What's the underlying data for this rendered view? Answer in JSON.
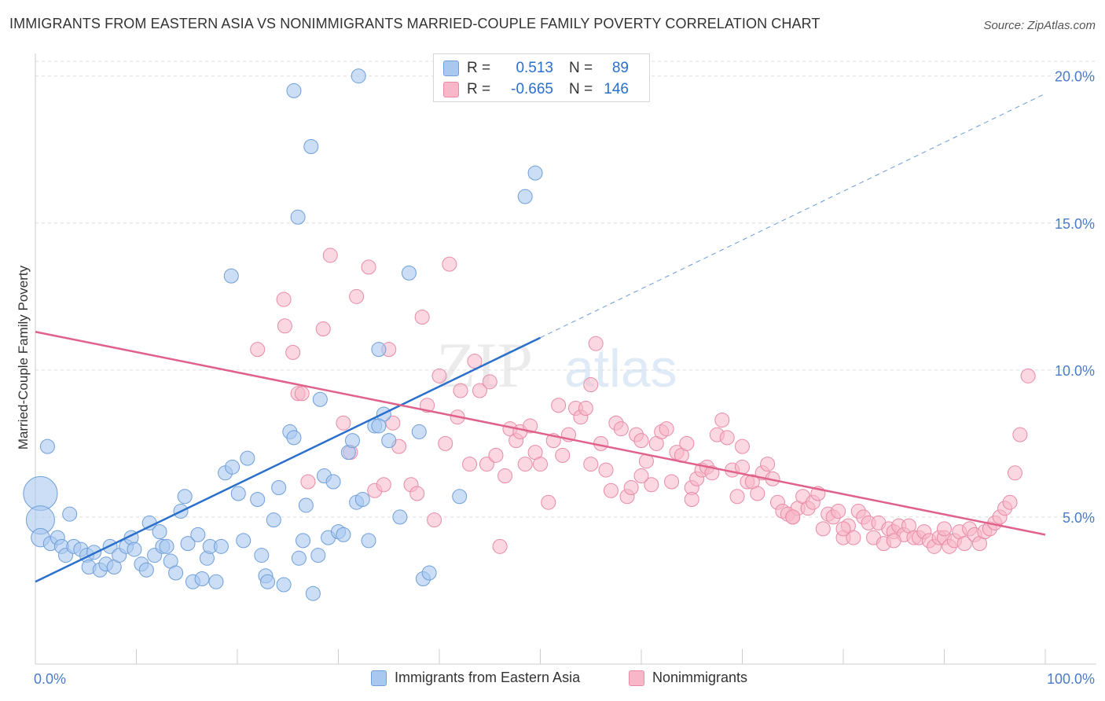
{
  "header": {
    "title": "IMMIGRANTS FROM EASTERN ASIA VS NONIMMIGRANTS MARRIED-COUPLE FAMILY POVERTY CORRELATION CHART",
    "source": "Source: ZipAtlas.com"
  },
  "watermark": {
    "zip": "ZIP",
    "atlas": "atlas"
  },
  "colors": {
    "blue_fill": "#a9c8f0",
    "blue_stroke": "#6f9fd8",
    "blue_line": "#2a6fcc",
    "pink_fill": "#f7b7c9",
    "pink_stroke": "#e88aa6",
    "pink_line": "#e0628b",
    "tick_label": "#4a7cc9",
    "grid": "#dddddd"
  },
  "legend": {
    "rows": [
      {
        "r_label": "R =",
        "r_value": "0.513",
        "n_label": "N =",
        "n_value": "89",
        "series": "blue"
      },
      {
        "r_label": "R =",
        "r_value": "-0.665",
        "n_label": "N =",
        "n_value": "146",
        "series": "pink"
      }
    ]
  },
  "bottom_legend": [
    {
      "label": "Immigrants from Eastern Asia",
      "series": "blue"
    },
    {
      "label": "Nonimmigrants",
      "series": "pink"
    }
  ],
  "chart_data": {
    "type": "scatter",
    "title": "IMMIGRANTS FROM EASTERN ASIA VS NONIMMIGRANTS MARRIED-COUPLE FAMILY POVERTY CORRELATION CHART",
    "xlabel": "",
    "ylabel": "Married-Couple Family Poverty",
    "xlim": [
      0,
      100
    ],
    "ylim": [
      0,
      20.5
    ],
    "x_tick_labels": [
      "0.0%",
      "100.0%"
    ],
    "y_ticks": [
      5,
      10,
      15,
      20
    ],
    "y_tick_labels": [
      "5.0%",
      "10.0%",
      "15.0%",
      "20.0%"
    ],
    "grid": true,
    "legend_position": "top-center",
    "series": [
      {
        "name": "Immigrants from Eastern Asia",
        "color": "#a9c8f0",
        "r": 0.513,
        "n": 89,
        "trend": {
          "x": [
            0,
            50
          ],
          "y": [
            2.8,
            11.1
          ],
          "extended_x": [
            50,
            100
          ],
          "extended_y": [
            11.1,
            19.4
          ]
        },
        "points": [
          [
            0.5,
            5.8,
            2.4
          ],
          [
            0.5,
            4.9,
            2.0
          ],
          [
            0.5,
            4.3,
            1.3
          ],
          [
            1.5,
            4.1,
            1
          ],
          [
            2.2,
            4.3,
            1
          ],
          [
            2.6,
            4.0,
            1
          ],
          [
            3.4,
            5.1,
            1
          ],
          [
            3.0,
            3.7,
            1
          ],
          [
            3.8,
            4.0,
            1
          ],
          [
            4.5,
            3.9,
            1
          ],
          [
            5.1,
            3.7,
            1
          ],
          [
            5.8,
            3.8,
            1
          ],
          [
            5.3,
            3.3,
            1
          ],
          [
            6.4,
            3.2,
            1
          ],
          [
            7.0,
            3.4,
            1
          ],
          [
            7.4,
            4.0,
            1
          ],
          [
            7.8,
            3.3,
            1
          ],
          [
            8.3,
            3.7,
            1
          ],
          [
            9.0,
            4.0,
            1
          ],
          [
            9.5,
            4.3,
            1
          ],
          [
            9.8,
            3.9,
            1
          ],
          [
            10.5,
            3.4,
            1
          ],
          [
            11.0,
            3.2,
            1
          ],
          [
            11.3,
            4.8,
            1
          ],
          [
            11.8,
            3.7,
            1
          ],
          [
            12.3,
            4.5,
            1
          ],
          [
            12.6,
            4.0,
            1
          ],
          [
            13.0,
            4.0,
            1
          ],
          [
            13.4,
            3.5,
            1
          ],
          [
            13.9,
            3.1,
            1
          ],
          [
            14.4,
            5.2,
            1
          ],
          [
            14.8,
            5.7,
            1
          ],
          [
            15.1,
            4.1,
            1
          ],
          [
            15.6,
            2.8,
            1
          ],
          [
            16.1,
            4.4,
            1
          ],
          [
            16.5,
            2.9,
            1
          ],
          [
            17.0,
            3.6,
            1
          ],
          [
            17.3,
            4.0,
            1
          ],
          [
            17.9,
            2.8,
            1
          ],
          [
            18.4,
            4.0,
            1
          ],
          [
            18.8,
            6.5,
            1
          ],
          [
            19.5,
            6.7,
            1
          ],
          [
            20.1,
            5.8,
            1
          ],
          [
            20.6,
            4.2,
            1
          ],
          [
            21.0,
            7.0,
            1
          ],
          [
            22.0,
            5.6,
            1
          ],
          [
            22.4,
            3.7,
            1
          ],
          [
            22.8,
            3.0,
            1
          ],
          [
            23.0,
            2.8,
            1
          ],
          [
            23.6,
            4.9,
            1
          ],
          [
            24.1,
            6.0,
            1
          ],
          [
            24.6,
            2.7,
            1
          ],
          [
            25.2,
            7.9,
            1
          ],
          [
            25.6,
            7.7,
            1
          ],
          [
            26.1,
            3.6,
            1
          ],
          [
            26.5,
            4.2,
            1
          ],
          [
            26.8,
            5.4,
            1
          ],
          [
            27.5,
            2.4,
            1
          ],
          [
            28.0,
            3.7,
            1
          ],
          [
            28.6,
            6.4,
            1
          ],
          [
            29.0,
            4.3,
            1
          ],
          [
            29.5,
            6.2,
            1
          ],
          [
            30.0,
            4.5,
            1
          ],
          [
            30.5,
            4.4,
            1
          ],
          [
            31.0,
            7.2,
            1
          ],
          [
            31.4,
            7.6,
            1
          ],
          [
            31.8,
            5.5,
            1
          ],
          [
            32.4,
            5.6,
            1
          ],
          [
            33.0,
            4.2,
            1
          ],
          [
            33.6,
            8.1,
            1
          ],
          [
            34.0,
            10.7,
            1
          ],
          [
            34.5,
            8.5,
            1
          ],
          [
            35.0,
            7.6,
            1
          ],
          [
            36.1,
            5.0,
            1
          ],
          [
            37.0,
            13.3,
            1
          ],
          [
            38.0,
            7.9,
            1
          ],
          [
            38.4,
            2.9,
            1
          ],
          [
            39.0,
            3.1,
            1
          ],
          [
            42.0,
            5.7,
            1
          ],
          [
            48.5,
            15.9,
            1
          ],
          [
            49.5,
            16.7,
            1
          ],
          [
            32.0,
            20.0,
            1
          ],
          [
            25.6,
            19.5,
            1
          ],
          [
            27.3,
            17.6,
            1
          ],
          [
            26.0,
            15.2,
            1
          ],
          [
            19.4,
            13.2,
            1
          ],
          [
            28.2,
            9.0,
            1
          ],
          [
            34.0,
            8.1,
            1
          ],
          [
            1.2,
            7.4,
            1
          ]
        ]
      },
      {
        "name": "Nonimmigrants",
        "color": "#f7b7c9",
        "r": -0.665,
        "n": 146,
        "trend": {
          "x": [
            0,
            100
          ],
          "y": [
            11.3,
            4.4
          ]
        },
        "points": [
          [
            22.0,
            10.7,
            1
          ],
          [
            24.7,
            11.5,
            1
          ],
          [
            24.6,
            12.4,
            1
          ],
          [
            25.5,
            10.6,
            1
          ],
          [
            26.0,
            9.2,
            1
          ],
          [
            26.4,
            9.2,
            1
          ],
          [
            27.0,
            6.2,
            1
          ],
          [
            28.5,
            11.4,
            1
          ],
          [
            29.2,
            13.9,
            1
          ],
          [
            30.5,
            8.2,
            1
          ],
          [
            31.2,
            7.2,
            1
          ],
          [
            31.8,
            12.5,
            1
          ],
          [
            33.0,
            13.5,
            1
          ],
          [
            33.6,
            5.9,
            1
          ],
          [
            34.5,
            6.1,
            1
          ],
          [
            35.0,
            10.7,
            1
          ],
          [
            35.4,
            8.2,
            1
          ],
          [
            36.0,
            7.4,
            1
          ],
          [
            37.2,
            6.1,
            1
          ],
          [
            37.8,
            5.8,
            1
          ],
          [
            38.3,
            11.8,
            1
          ],
          [
            38.8,
            8.8,
            1
          ],
          [
            39.5,
            4.9,
            1
          ],
          [
            40.0,
            9.8,
            1
          ],
          [
            40.6,
            7.5,
            1
          ],
          [
            41.0,
            13.6,
            1
          ],
          [
            41.8,
            8.4,
            1
          ],
          [
            42.1,
            9.3,
            1
          ],
          [
            43.0,
            6.8,
            1
          ],
          [
            43.5,
            10.3,
            1
          ],
          [
            44.0,
            9.3,
            1
          ],
          [
            44.7,
            6.8,
            1
          ],
          [
            45.0,
            9.6,
            1
          ],
          [
            45.6,
            7.1,
            1
          ],
          [
            46.0,
            4.0,
            1
          ],
          [
            46.5,
            6.4,
            1
          ],
          [
            47.0,
            8.0,
            1
          ],
          [
            47.6,
            7.6,
            1
          ],
          [
            48.0,
            7.9,
            1
          ],
          [
            48.5,
            6.8,
            1
          ],
          [
            49.0,
            8.1,
            1
          ],
          [
            49.5,
            7.2,
            1
          ],
          [
            50.0,
            6.8,
            1
          ],
          [
            50.8,
            5.5,
            1
          ],
          [
            51.3,
            7.6,
            1
          ],
          [
            51.8,
            8.8,
            1
          ],
          [
            52.2,
            7.1,
            1
          ],
          [
            52.8,
            7.8,
            1
          ],
          [
            53.5,
            8.7,
            1
          ],
          [
            54.0,
            8.4,
            1
          ],
          [
            54.5,
            8.7,
            1
          ],
          [
            55.0,
            9.5,
            1
          ],
          [
            55.5,
            10.9,
            1
          ],
          [
            56.0,
            7.5,
            1
          ],
          [
            56.5,
            6.6,
            1
          ],
          [
            57.0,
            5.9,
            1
          ],
          [
            57.5,
            8.2,
            1
          ],
          [
            58.0,
            8.0,
            1
          ],
          [
            58.6,
            5.7,
            1
          ],
          [
            59.0,
            6.0,
            1
          ],
          [
            59.5,
            7.8,
            1
          ],
          [
            60.0,
            7.6,
            1
          ],
          [
            60.5,
            6.9,
            1
          ],
          [
            61.0,
            6.1,
            1
          ],
          [
            61.5,
            7.5,
            1
          ],
          [
            62.0,
            7.9,
            1
          ],
          [
            62.5,
            8.0,
            1
          ],
          [
            63.0,
            6.2,
            1
          ],
          [
            63.5,
            7.2,
            1
          ],
          [
            64.0,
            7.1,
            1
          ],
          [
            64.5,
            7.5,
            1
          ],
          [
            65.0,
            6.0,
            1
          ],
          [
            65.5,
            6.3,
            1
          ],
          [
            66.0,
            6.6,
            1
          ],
          [
            66.5,
            6.7,
            1
          ],
          [
            67.0,
            6.5,
            1
          ],
          [
            67.5,
            7.8,
            1
          ],
          [
            68.0,
            8.3,
            1
          ],
          [
            68.5,
            7.7,
            1
          ],
          [
            69.0,
            6.6,
            1
          ],
          [
            69.5,
            5.7,
            1
          ],
          [
            70.0,
            7.4,
            1
          ],
          [
            70.5,
            6.2,
            1
          ],
          [
            71.0,
            6.2,
            1
          ],
          [
            71.5,
            5.8,
            1
          ],
          [
            72.0,
            6.5,
            1
          ],
          [
            72.5,
            6.8,
            1
          ],
          [
            73.0,
            6.3,
            1
          ],
          [
            73.5,
            5.5,
            1
          ],
          [
            74.0,
            5.2,
            1
          ],
          [
            74.5,
            5.1,
            1
          ],
          [
            75.0,
            5.0,
            1
          ],
          [
            75.5,
            5.3,
            1
          ],
          [
            76.0,
            5.7,
            1
          ],
          [
            76.5,
            5.3,
            1
          ],
          [
            77.0,
            5.5,
            1
          ],
          [
            77.5,
            5.8,
            1
          ],
          [
            78.0,
            4.6,
            1
          ],
          [
            78.5,
            5.1,
            1
          ],
          [
            79.0,
            5.0,
            1
          ],
          [
            79.5,
            5.2,
            1
          ],
          [
            80.0,
            4.3,
            1
          ],
          [
            80.5,
            4.7,
            1
          ],
          [
            81.0,
            4.3,
            1
          ],
          [
            81.5,
            5.2,
            1
          ],
          [
            82.0,
            5.0,
            1
          ],
          [
            82.5,
            4.8,
            1
          ],
          [
            83.0,
            4.3,
            1
          ],
          [
            83.5,
            4.8,
            1
          ],
          [
            84.0,
            4.1,
            1
          ],
          [
            84.5,
            4.6,
            1
          ],
          [
            85.0,
            4.5,
            1
          ],
          [
            85.5,
            4.7,
            1
          ],
          [
            86.0,
            4.4,
            1
          ],
          [
            86.5,
            4.7,
            1
          ],
          [
            87.0,
            4.3,
            1
          ],
          [
            87.5,
            4.3,
            1
          ],
          [
            88.0,
            4.5,
            1
          ],
          [
            88.5,
            4.2,
            1
          ],
          [
            89.0,
            4.0,
            1
          ],
          [
            89.5,
            4.3,
            1
          ],
          [
            90.0,
            4.3,
            1
          ],
          [
            90.5,
            4.0,
            1
          ],
          [
            91.0,
            4.2,
            1
          ],
          [
            91.5,
            4.5,
            1
          ],
          [
            92.0,
            4.1,
            1
          ],
          [
            92.5,
            4.6,
            1
          ],
          [
            93.0,
            4.4,
            1
          ],
          [
            93.5,
            4.1,
            1
          ],
          [
            94.0,
            4.5,
            1
          ],
          [
            94.5,
            4.6,
            1
          ],
          [
            95.0,
            4.8,
            1
          ],
          [
            95.5,
            5.0,
            1
          ],
          [
            96.0,
            5.3,
            1
          ],
          [
            96.5,
            5.5,
            1
          ],
          [
            97.0,
            6.5,
            1
          ],
          [
            97.5,
            7.8,
            1
          ],
          [
            98.3,
            9.8,
            1
          ],
          [
            55.0,
            6.8,
            1
          ],
          [
            60.0,
            6.4,
            1
          ],
          [
            65.0,
            5.6,
            1
          ],
          [
            70.0,
            6.7,
            1
          ],
          [
            75.0,
            5.0,
            1
          ],
          [
            80.0,
            4.6,
            1
          ],
          [
            85.0,
            4.2,
            1
          ],
          [
            90.0,
            4.6,
            1
          ]
        ]
      }
    ]
  }
}
